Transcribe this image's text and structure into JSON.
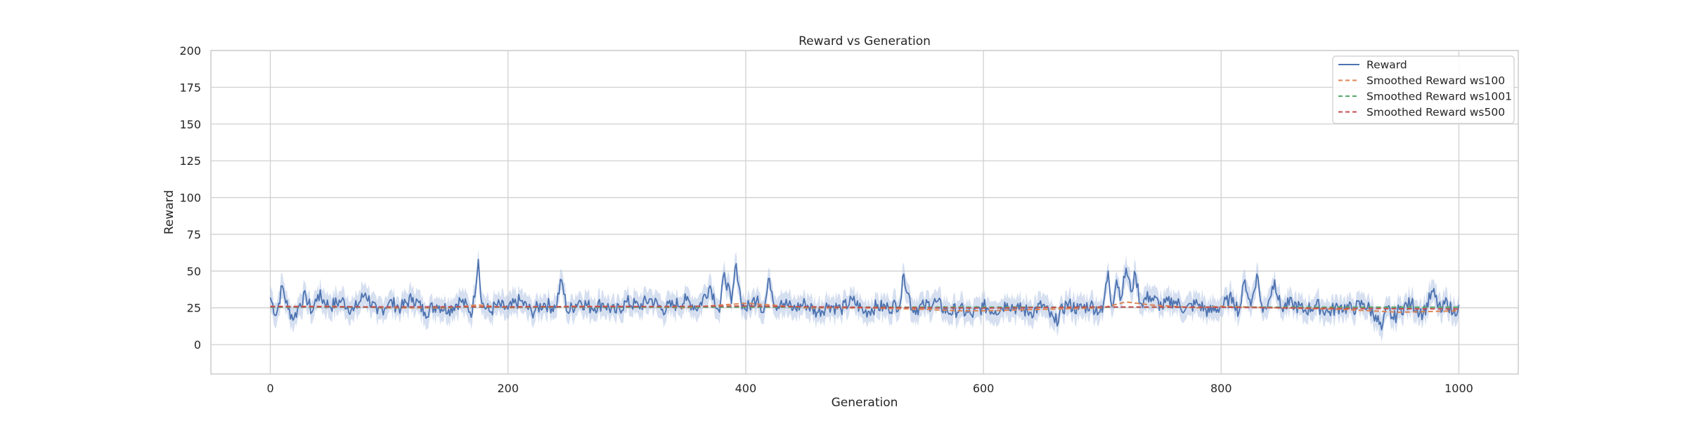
{
  "chart_data": {
    "type": "line",
    "title": "Reward vs Generation",
    "xlabel": "Generation",
    "ylabel": "Reward",
    "xlim": [
      -50,
      1050
    ],
    "ylim": [
      -20,
      200
    ],
    "xticks": [
      0,
      200,
      400,
      600,
      800,
      1000
    ],
    "yticks": [
      0,
      25,
      50,
      75,
      100,
      125,
      150,
      175,
      200
    ],
    "grid": true,
    "legend_position": "top-right",
    "band": "shaded spread around Reward, roughly ±7",
    "colors": {
      "reward": "#4c72b0",
      "band": "#a1b9dd",
      "ws100": "#dd8452",
      "ws1001": "#55a868",
      "ws500": "#c44e52",
      "grid": "#d0d0d0",
      "frame": "#cccccc"
    },
    "series": [
      {
        "name": "Reward",
        "style": "solid",
        "x": [
          0,
          5,
          10,
          15,
          20,
          25,
          30,
          35,
          40,
          50,
          60,
          70,
          80,
          90,
          100,
          110,
          120,
          130,
          140,
          150,
          160,
          170,
          175,
          178,
          185,
          190,
          200,
          210,
          220,
          230,
          240,
          245,
          250,
          260,
          270,
          280,
          290,
          300,
          310,
          320,
          330,
          340,
          350,
          360,
          370,
          378,
          382,
          388,
          392,
          396,
          400,
          405,
          410,
          415,
          420,
          425,
          430,
          440,
          450,
          460,
          470,
          480,
          490,
          500,
          510,
          520,
          530,
          533,
          540,
          550,
          560,
          570,
          580,
          590,
          600,
          610,
          620,
          630,
          640,
          650,
          660,
          670,
          680,
          690,
          700,
          705,
          708,
          712,
          716,
          720,
          724,
          728,
          732,
          740,
          750,
          760,
          770,
          780,
          790,
          800,
          810,
          815,
          820,
          825,
          830,
          835,
          840,
          845,
          850,
          860,
          870,
          880,
          890,
          900,
          910,
          920,
          930,
          935,
          940,
          945,
          950,
          960,
          970,
          978,
          985,
          990,
          995,
          1000
        ],
        "values": [
          32,
          20,
          40,
          24,
          18,
          28,
          33,
          22,
          34,
          26,
          30,
          23,
          35,
          21,
          29,
          25,
          32,
          22,
          27,
          24,
          30,
          22,
          58,
          28,
          22,
          27,
          24,
          30,
          22,
          28,
          25,
          44,
          22,
          30,
          25,
          28,
          22,
          29,
          26,
          31,
          24,
          27,
          30,
          25,
          40,
          22,
          49,
          28,
          55,
          30,
          24,
          28,
          33,
          22,
          45,
          26,
          30,
          24,
          28,
          22,
          27,
          24,
          30,
          22,
          26,
          25,
          28,
          48,
          24,
          26,
          29,
          22,
          24,
          20,
          26,
          23,
          28,
          24,
          22,
          27,
          15,
          28,
          24,
          27,
          22,
          50,
          26,
          44,
          32,
          52,
          36,
          48,
          28,
          33,
          26,
          30,
          24,
          28,
          22,
          26,
          32,
          22,
          44,
          26,
          48,
          22,
          30,
          44,
          25,
          28,
          23,
          27,
          22,
          26,
          24,
          28,
          20,
          10,
          25,
          17,
          24,
          28,
          21,
          36,
          22,
          30,
          21,
          27
        ]
      },
      {
        "name": "Smoothed Reward ws100",
        "style": "dashed",
        "x": [
          0,
          50,
          100,
          150,
          175,
          200,
          250,
          300,
          350,
          380,
          400,
          420,
          450,
          500,
          550,
          580,
          600,
          650,
          700,
          720,
          740,
          780,
          800,
          850,
          900,
          950,
          1000
        ],
        "values": [
          26,
          26,
          25,
          25,
          27,
          25,
          26,
          26,
          25,
          27,
          28,
          27,
          25,
          25,
          24,
          23,
          23,
          24,
          25,
          29,
          27,
          25,
          26,
          25,
          24,
          22,
          23
        ]
      },
      {
        "name": "Smoothed Reward ws1001",
        "style": "dashed",
        "x": [
          0,
          1000
        ],
        "values": [
          25.5,
          25.5
        ]
      },
      {
        "name": "Smoothed Reward ws500",
        "style": "dashed",
        "x": [
          0,
          100,
          200,
          300,
          400,
          500,
          600,
          700,
          800,
          900,
          1000
        ],
        "values": [
          25.8,
          25.6,
          25.7,
          25.8,
          26.2,
          25.3,
          24.8,
          25.6,
          25.4,
          24.6,
          24.2
        ]
      }
    ]
  }
}
